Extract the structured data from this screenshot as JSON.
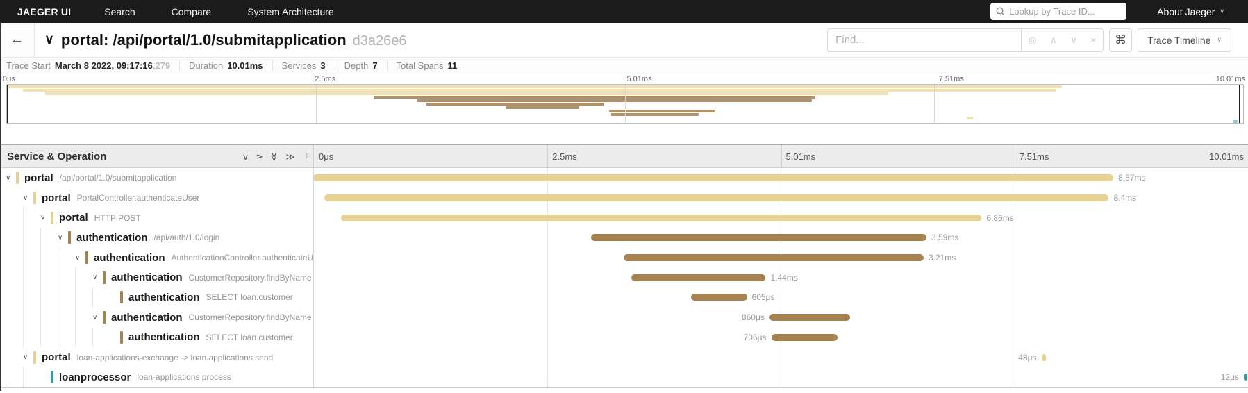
{
  "nav": {
    "brand": "JAEGER UI",
    "items": [
      "Search",
      "Compare",
      "System Architecture"
    ],
    "search_placeholder": "Lookup by Trace ID...",
    "about_label": "About Jaeger"
  },
  "trace_header": {
    "title": "portal: /api/portal/1.0/submitapplication",
    "trace_id": "d3a26e6",
    "find_placeholder": "Find...",
    "shortcut_symbol": "⌘",
    "view_selector": "Trace Timeline"
  },
  "summary": {
    "items": [
      {
        "label": "Trace Start",
        "value": "March 8 2022, 09:17:16",
        "suffix": ".279"
      },
      {
        "label": "Duration",
        "value": "10.01ms"
      },
      {
        "label": "Services",
        "value": "3"
      },
      {
        "label": "Depth",
        "value": "7"
      },
      {
        "label": "Total Spans",
        "value": "11"
      }
    ]
  },
  "timeline": {
    "ticks": [
      {
        "label": "0μs",
        "pct": 0
      },
      {
        "label": "2.5ms",
        "pct": 25
      },
      {
        "label": "5.01ms",
        "pct": 50
      },
      {
        "label": "7.51ms",
        "pct": 75
      },
      {
        "label": "10.01ms",
        "pct": 100
      }
    ],
    "gridline_pcts": [
      25,
      50,
      75
    ]
  },
  "table": {
    "header_label": "Service & Operation"
  },
  "colors": {
    "portal": "#e7d193",
    "authentication": "#a5824f",
    "loanprocessor": "#2f9a9f",
    "mini": {
      "portal": "#efe2b0",
      "authentication": "#b1906a",
      "loanprocessor": "#8ccfcf"
    }
  },
  "spans": [
    {
      "service": "portal",
      "operation": "/api/portal/1.0/submitapplication",
      "depth": 0,
      "has_children": true,
      "color": "portal",
      "start_pct": 0,
      "width_pct": 85.6,
      "duration": "8.57ms",
      "label_side": "right"
    },
    {
      "service": "portal",
      "operation": "PortalController.authenticateUser",
      "depth": 1,
      "has_children": true,
      "color": "portal",
      "start_pct": 1.2,
      "width_pct": 83.9,
      "duration": "8.4ms",
      "label_side": "right"
    },
    {
      "service": "portal",
      "operation": "HTTP POST",
      "depth": 2,
      "has_children": true,
      "color": "portal",
      "start_pct": 3.0,
      "width_pct": 68.5,
      "duration": "6.86ms",
      "label_side": "right"
    },
    {
      "service": "authentication",
      "operation": "/api/auth/1.0/login",
      "depth": 3,
      "has_children": true,
      "color": "authentication",
      "start_pct": 29.7,
      "width_pct": 35.9,
      "duration": "3.59ms",
      "label_side": "right"
    },
    {
      "service": "authentication",
      "operation": "AuthenticationController.authenticateUser",
      "depth": 4,
      "has_children": true,
      "color": "authentication",
      "start_pct": 33.2,
      "width_pct": 32.1,
      "duration": "3.21ms",
      "label_side": "right"
    },
    {
      "service": "authentication",
      "operation": "CustomerRepository.findByName",
      "depth": 5,
      "has_children": true,
      "color": "authentication",
      "start_pct": 34.0,
      "width_pct": 14.4,
      "duration": "1.44ms",
      "label_side": "right"
    },
    {
      "service": "authentication",
      "operation": "SELECT loan.customer",
      "depth": 6,
      "has_children": false,
      "color": "authentication",
      "start_pct": 40.4,
      "width_pct": 6.0,
      "duration": "605μs",
      "label_side": "right"
    },
    {
      "service": "authentication",
      "operation": "CustomerRepository.findByName",
      "depth": 5,
      "has_children": true,
      "color": "authentication",
      "start_pct": 48.8,
      "width_pct": 8.6,
      "duration": "860μs",
      "label_side": "left"
    },
    {
      "service": "authentication",
      "operation": "SELECT loan.customer",
      "depth": 6,
      "has_children": false,
      "color": "authentication",
      "start_pct": 49.0,
      "width_pct": 7.1,
      "duration": "706μs",
      "label_side": "left"
    },
    {
      "service": "portal",
      "operation": "loan-applications-exchange -> loan.applications send",
      "depth": 1,
      "has_children": true,
      "color": "portal",
      "start_pct": 77.9,
      "width_pct": 0.5,
      "duration": "48μs",
      "label_side": "left"
    },
    {
      "service": "loanprocessor",
      "operation": "loan-applications process",
      "depth": 2,
      "has_children": false,
      "color": "loanprocessor",
      "start_pct": 99.55,
      "width_pct": 0.35,
      "duration": "12μs",
      "label_side": "left"
    }
  ]
}
